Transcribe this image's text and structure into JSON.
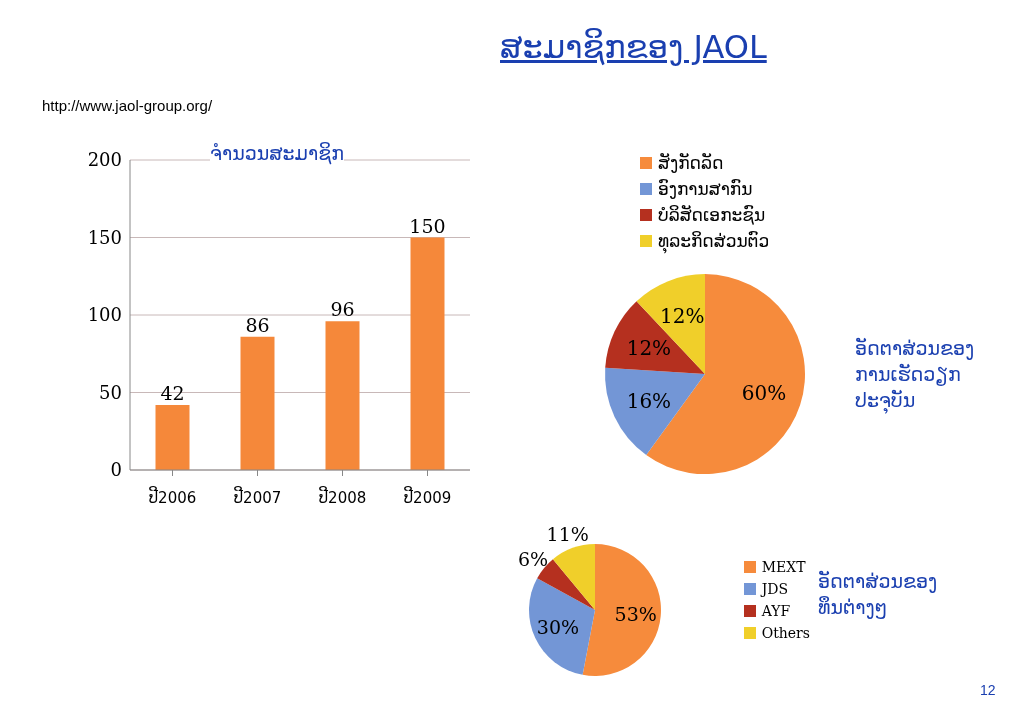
{
  "chart_data": [
    {
      "type": "bar",
      "title": "ຈຳນວນສະມາຊິກ",
      "categories": [
        "ປີ2006",
        "ປີ2007",
        "ປີ2008",
        "ປີ2009"
      ],
      "values": [
        42,
        86,
        96,
        150
      ],
      "color": "#f5883a",
      "ylim": [
        0,
        200
      ],
      "yticks": [
        0,
        50,
        100,
        150,
        200
      ],
      "grid": "y",
      "data_labels": true,
      "annotations": [
        "ສະມາຊິກຂອງ JAOL",
        "http://www.jaol-group.org/",
        "12"
      ]
    },
    {
      "type": "pie",
      "title": "ອັດຕາສ່ວນຂອງການເຮັດວຽກປະຈຸບັນ",
      "categories": [
        "ສັງກັດລັດ",
        "ອົງການສາກົນ",
        "ບໍລິສັດເອກະຊົນ",
        "ທຸລະກິດສ່ວນຕົວ"
      ],
      "values": [
        60,
        16,
        12,
        12
      ],
      "value_labels": [
        "60%",
        "16%",
        "12%",
        "12%"
      ],
      "colors": [
        "#f68b3c",
        "#7396d6",
        "#b5301f",
        "#f0cf2a"
      ],
      "legend": "top"
    },
    {
      "type": "pie",
      "title": "ອັດຕາສ່ວນຂອງທຶນຕ່າງໆ",
      "categories": [
        "MEXT",
        "JDS",
        "AYF",
        "Others"
      ],
      "values": [
        53,
        30,
        6,
        11
      ],
      "value_labels": [
        "53%",
        "30%",
        "6%",
        "11%"
      ],
      "colors": [
        "#f68b3c",
        "#7396d6",
        "#b5301f",
        "#f0cf2a"
      ],
      "legend": "right"
    }
  ]
}
